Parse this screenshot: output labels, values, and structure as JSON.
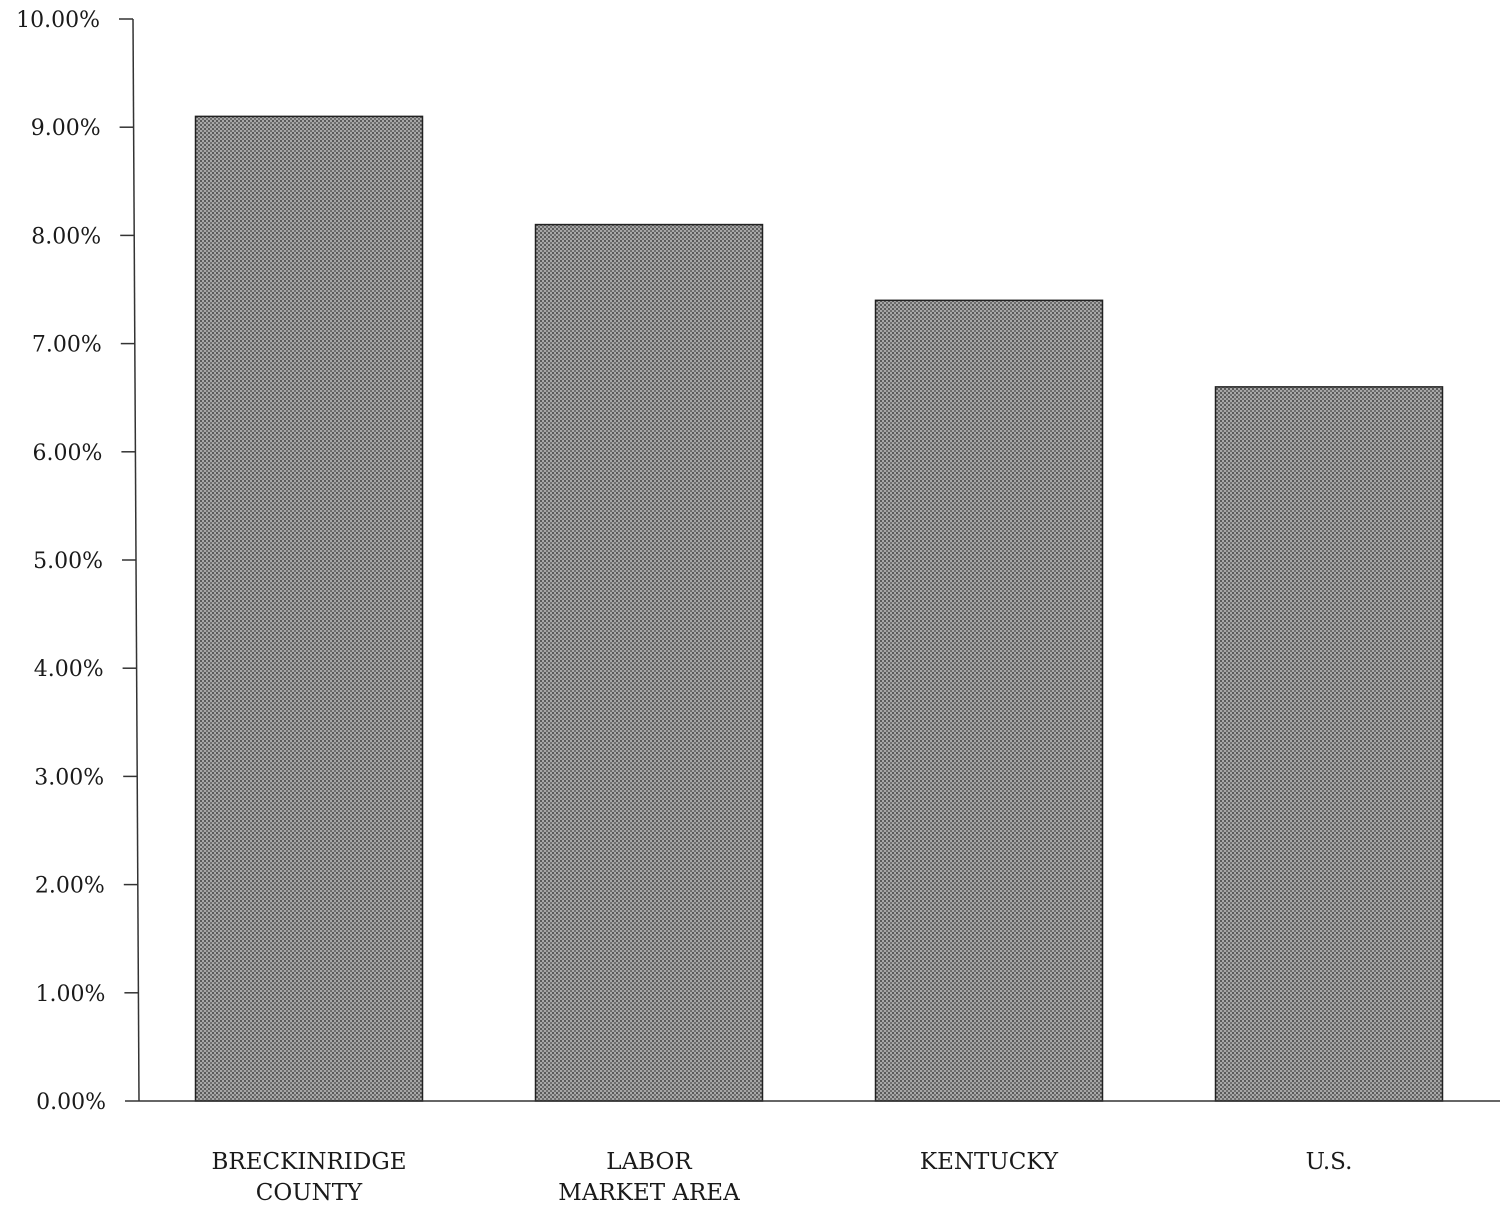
{
  "chart_data": {
    "type": "bar",
    "title": "",
    "xlabel": "",
    "ylabel": "",
    "categories": [
      [
        "BRECKINRIDGE",
        "COUNTY"
      ],
      [
        "LABOR",
        "MARKET AREA"
      ],
      [
        "KENTUCKY"
      ],
      [
        "U.S."
      ]
    ],
    "category_names": [
      "BRECKINRIDGE COUNTY",
      "LABOR MARKET AREA",
      "KENTUCKY",
      "U.S."
    ],
    "values": [
      9.1,
      8.1,
      7.4,
      6.6
    ],
    "ylim": [
      0,
      10
    ],
    "y_ticks": [
      0,
      1,
      2,
      3,
      4,
      5,
      6,
      7,
      8,
      9,
      10
    ],
    "y_tick_labels": [
      "0.00%",
      "1.00%",
      "2.00%",
      "3.00%",
      "4.00%",
      "5.00%",
      "6.00%",
      "7.00%",
      "8.00%",
      "9.00%",
      "10.00%"
    ],
    "grid": false,
    "legend": "none",
    "bar_fill": "#8f8f8f",
    "bar_stroke": "#222222",
    "axis_color": "#333333"
  }
}
